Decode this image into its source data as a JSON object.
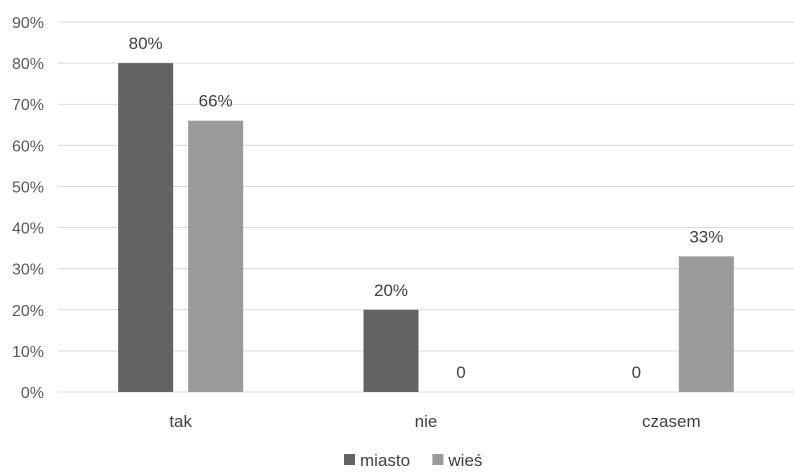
{
  "chart_data": {
    "type": "bar",
    "title": "",
    "xlabel": "",
    "ylabel": "",
    "categories": [
      "tak",
      "nie",
      "czasem"
    ],
    "series": [
      {
        "name": "miasto",
        "values": [
          80,
          20,
          0
        ],
        "labels": [
          "80%",
          "20%",
          "0"
        ],
        "color": "#636363"
      },
      {
        "name": "wieś",
        "values": [
          66,
          0,
          33
        ],
        "labels": [
          "66%",
          "0",
          "33%"
        ],
        "color": "#9b9b9b"
      }
    ],
    "ylim": [
      0,
      90
    ],
    "yticks": [
      0,
      10,
      20,
      30,
      40,
      50,
      60,
      70,
      80,
      90
    ],
    "ytick_labels": [
      "0%",
      "10%",
      "20%",
      "30%",
      "40%",
      "50%",
      "60%",
      "70%",
      "80%",
      "90%"
    ],
    "grid": true,
    "legend_position": "bottom"
  }
}
